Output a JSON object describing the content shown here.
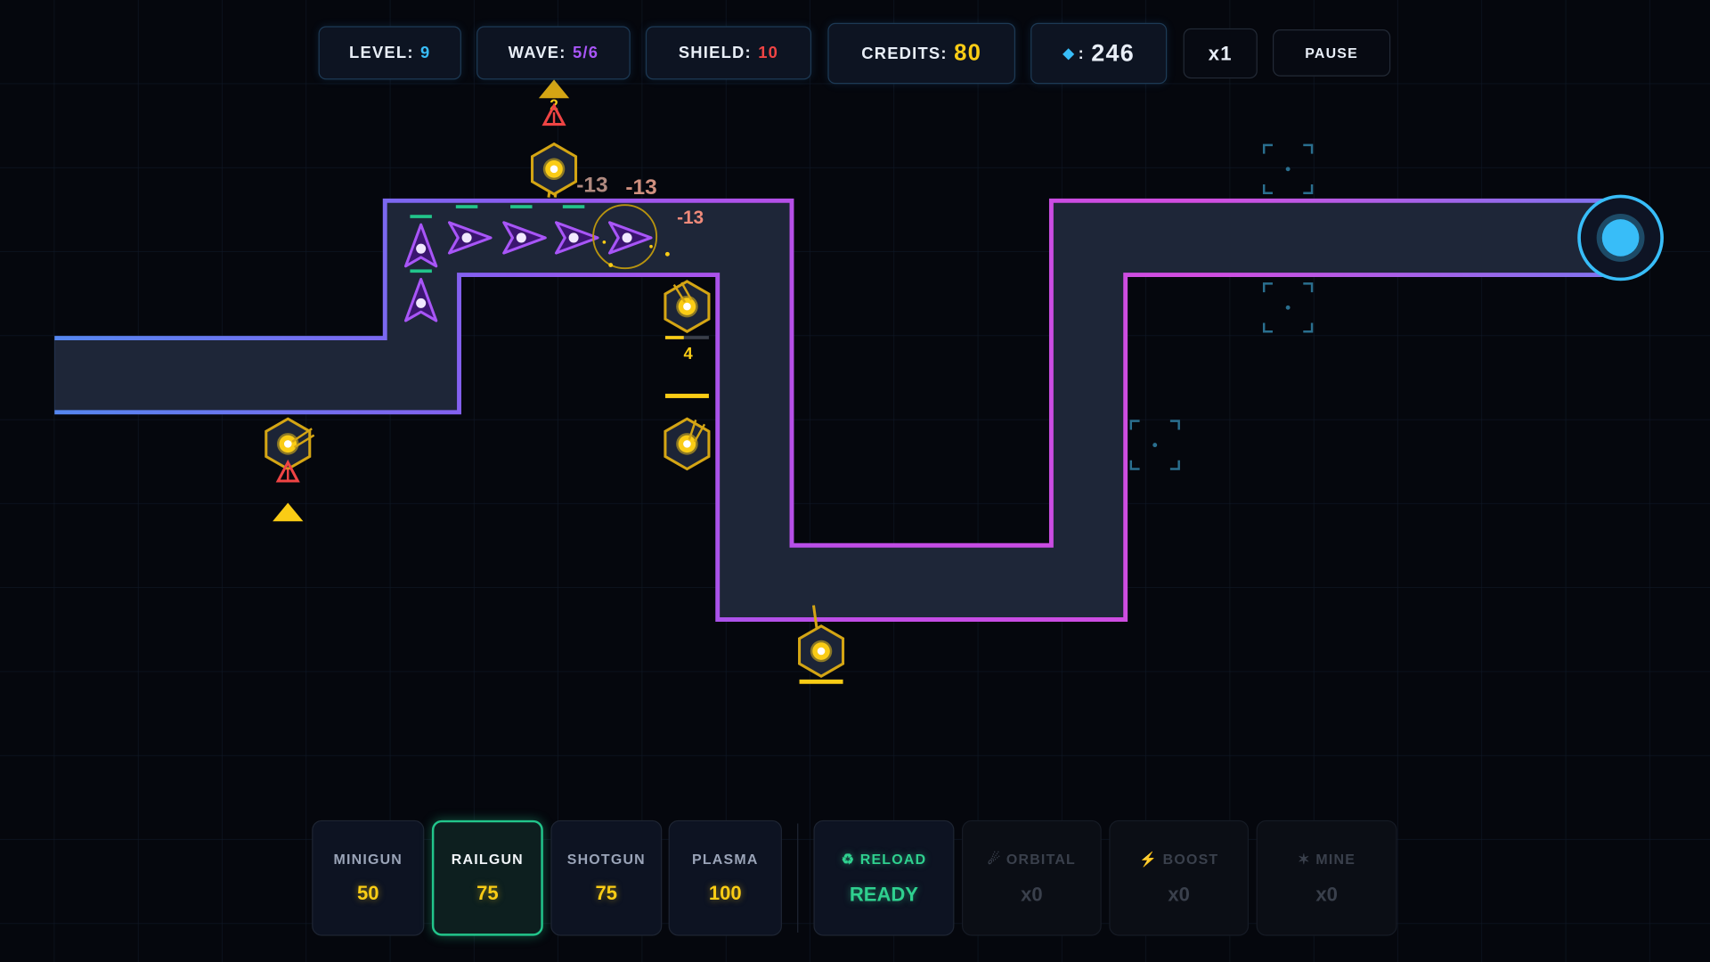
{
  "hud": {
    "level_label": "LEVEL:",
    "level": "9",
    "wave_label": "WAVE:",
    "wave": "5/6",
    "shield_label": "SHIELD:",
    "shield": "10",
    "credits_label": "CREDITS:",
    "credits": "80",
    "gems_icon": "diamond-icon",
    "gems_sep": ":",
    "gems": "246",
    "speed": "x1",
    "pause": "PAUSE"
  },
  "colors": {
    "level": "#38bdf8",
    "wave": "#a855f7",
    "shield": "#ef4444",
    "credits": "#facc15",
    "accent": "#22c58b"
  },
  "field": {
    "tower_ammo": "4",
    "upgrade_count": "2",
    "damage_texts": [
      "-13",
      "-13",
      "-13"
    ]
  },
  "weapons": [
    {
      "name": "MINIGUN",
      "cost": "50"
    },
    {
      "name": "RAILGUN",
      "cost": "75",
      "selected": true
    },
    {
      "name": "SHOTGUN",
      "cost": "75"
    },
    {
      "name": "PLASMA",
      "cost": "100"
    }
  ],
  "abilities": [
    {
      "icon": "recycle-icon",
      "glyph": "♻",
      "name": "RELOAD",
      "status": "READY"
    },
    {
      "icon": "orbital-icon",
      "glyph": "☄",
      "name": "ORBITAL",
      "status": "x0"
    },
    {
      "icon": "lightning-icon",
      "glyph": "⚡",
      "name": "BOOST",
      "status": "x0"
    },
    {
      "icon": "mine-icon",
      "glyph": "✶",
      "name": "MINE",
      "status": "x0"
    }
  ]
}
